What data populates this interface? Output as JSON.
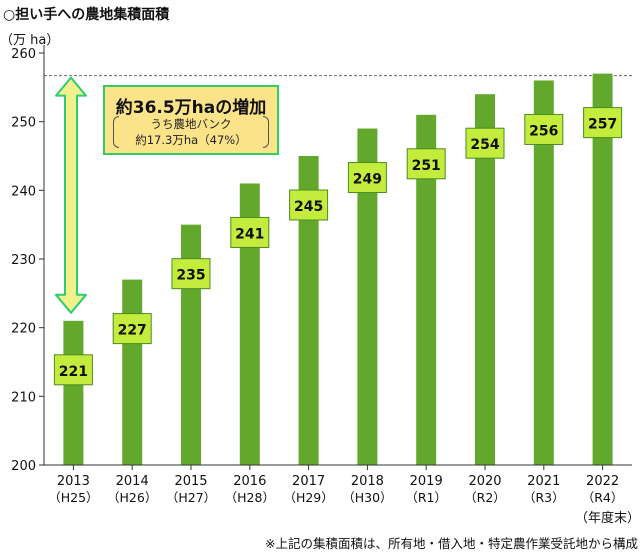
{
  "chart_data": {
    "type": "bar",
    "title": "○担い手への農地集積面積",
    "ylabel": "（万 ha）",
    "ylim": [
      200,
      260
    ],
    "yticks": [
      200,
      210,
      220,
      230,
      240,
      250,
      260
    ],
    "categories": [
      "2013",
      "2014",
      "2015",
      "2016",
      "2017",
      "2018",
      "2019",
      "2020",
      "2021",
      "2022"
    ],
    "sublabels": [
      "（H25）",
      "（H26）",
      "（H27）",
      "（H28）",
      "（H29）",
      "（H30）",
      "（R1）",
      "（R2）",
      "（R3）",
      "（R4）"
    ],
    "values": [
      221,
      227,
      235,
      241,
      245,
      249,
      251,
      254,
      256,
      257
    ],
    "x_unit_note": "（年度末）",
    "reference_line": 256.7,
    "annotation": {
      "headline": "約36.5万haの増加",
      "line1": "うち農地バンク",
      "line2": "約17.3万ha（47%）"
    },
    "footnote": "※上記の集積面積は、所有地・借入地・特定農作業受託地から構成",
    "colors": {
      "bar": "#62a82c",
      "label_bg": "#c4ec3c",
      "label_border": "#4a8c22",
      "arrow_fill": "#f0f08c",
      "arrow_stroke": "#2ecc71",
      "box_bg": "#fbe38a",
      "box_border": "#33cc66"
    }
  }
}
